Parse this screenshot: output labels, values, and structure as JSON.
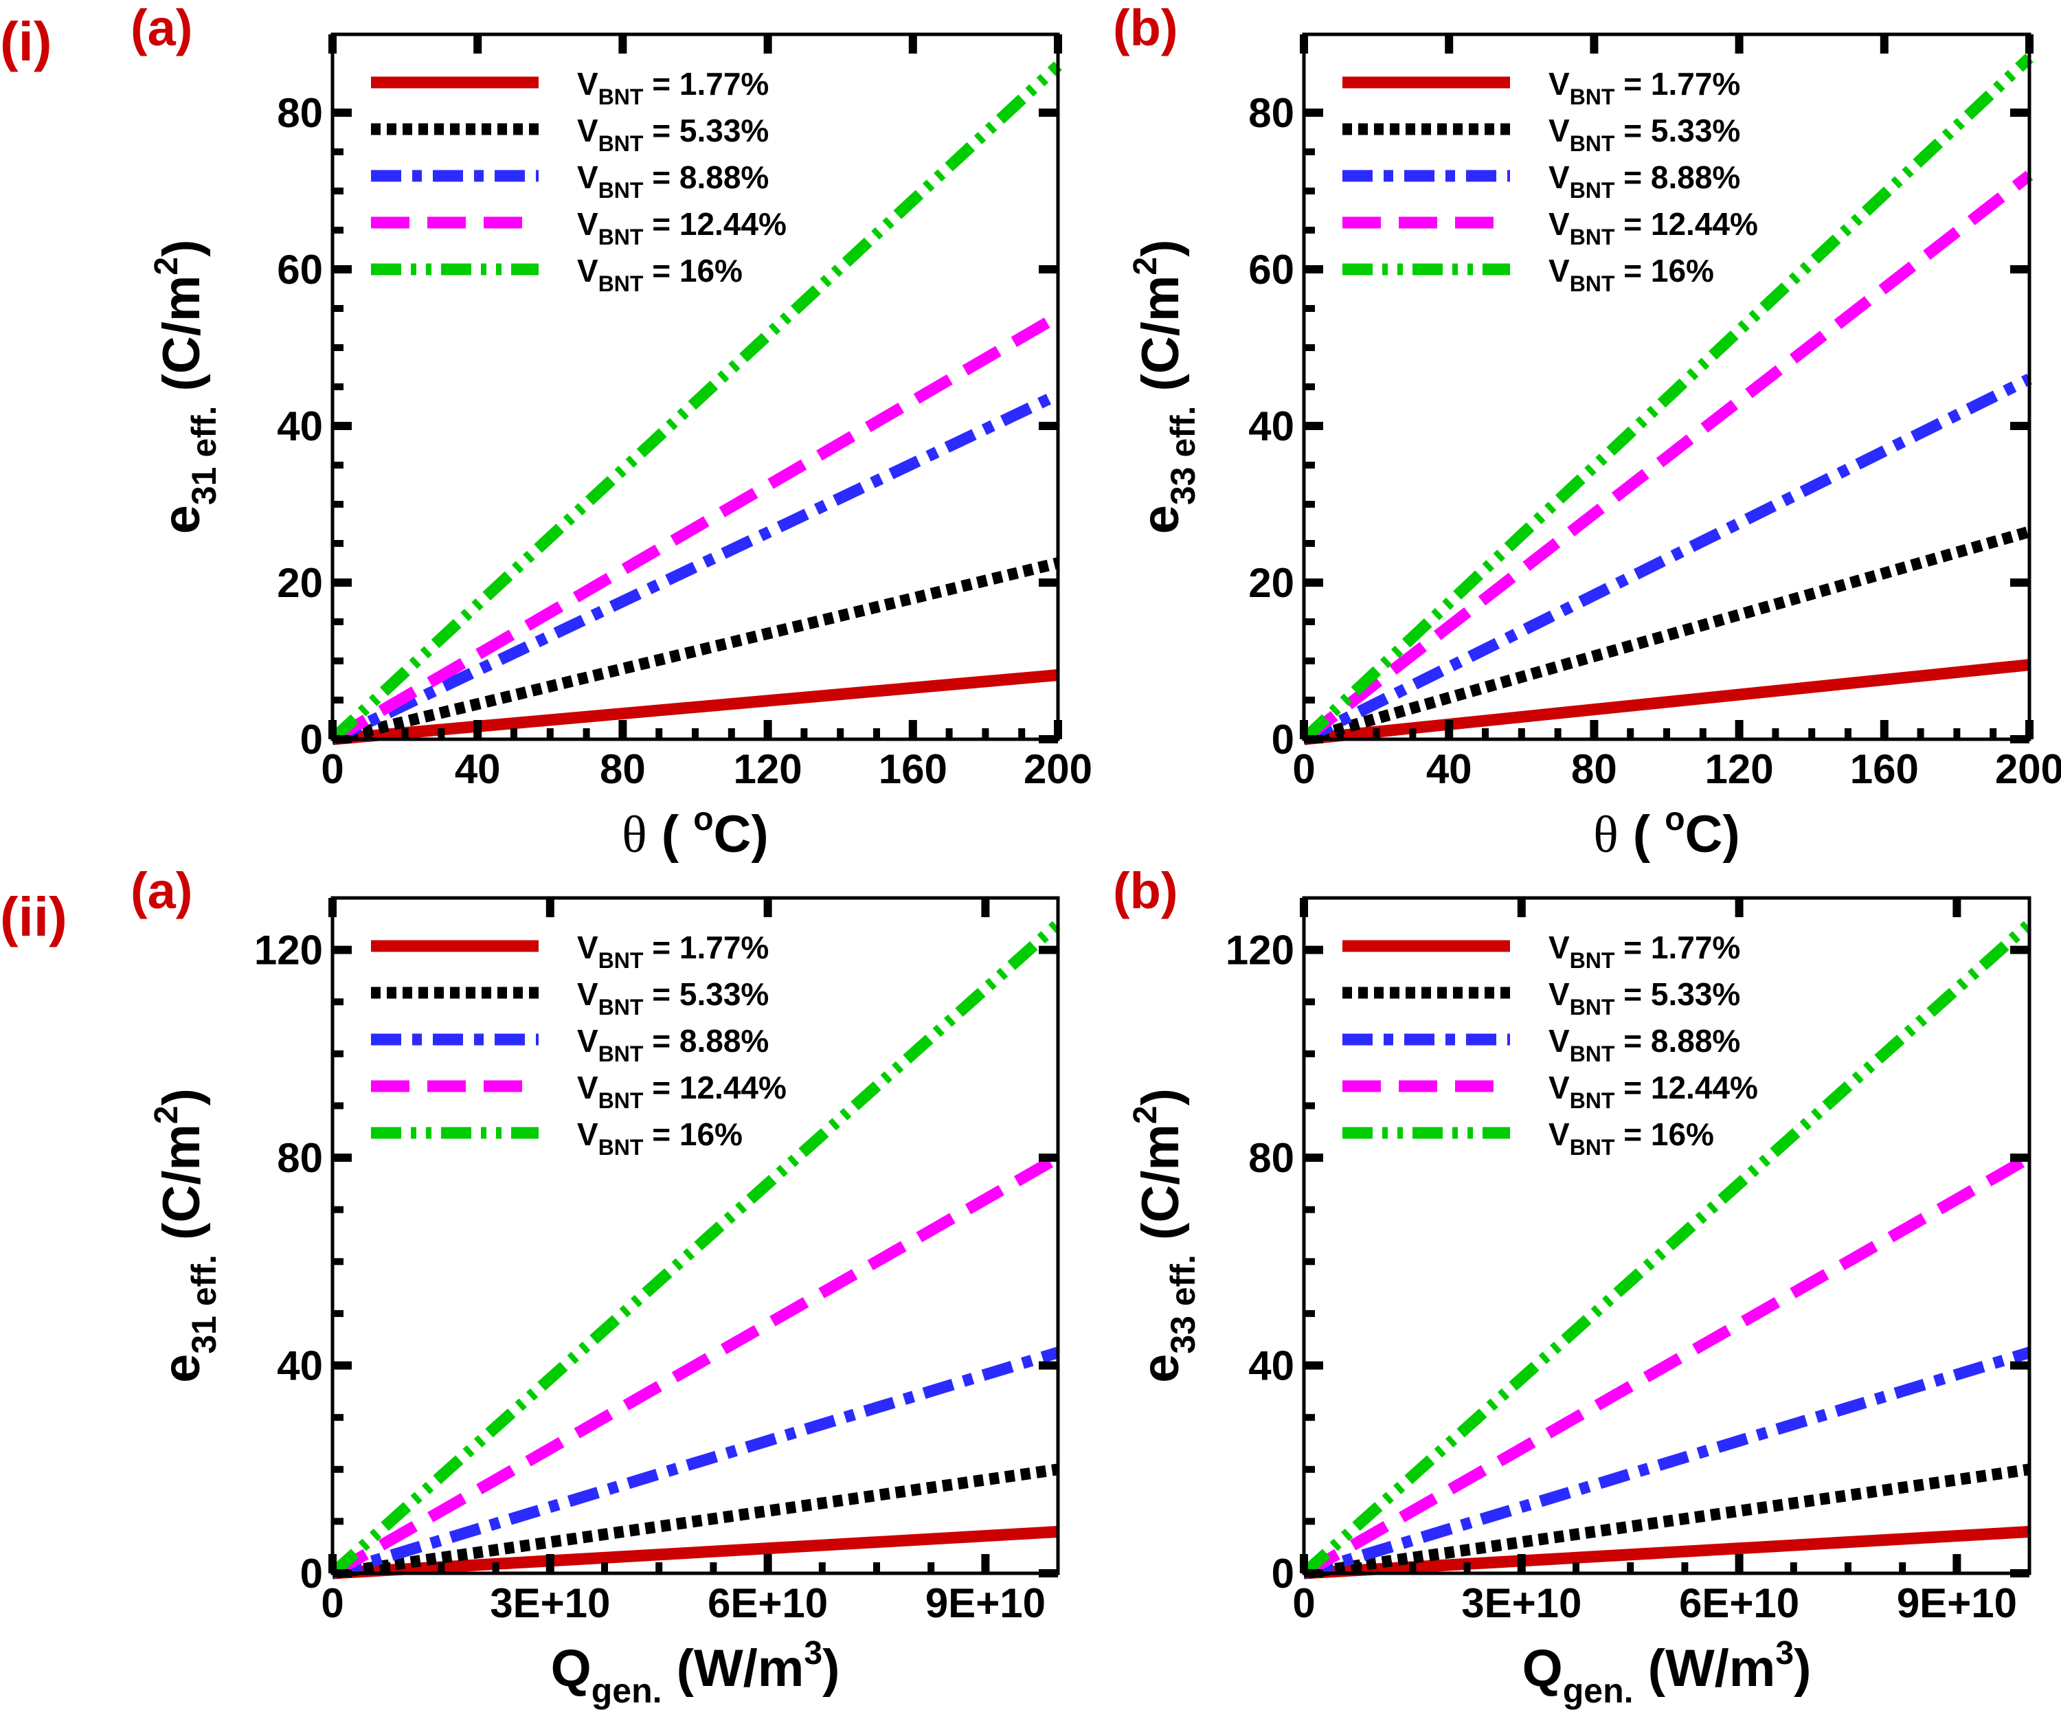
{
  "figure": {
    "row_labels": [
      "(i)",
      "(ii)"
    ]
  },
  "legend_entries": [
    {
      "prefix": "V",
      "subscript": "BNT",
      "value_text": " = 1.77%",
      "color": "#cc0000",
      "style": "solid"
    },
    {
      "prefix": "V",
      "subscript": "BNT",
      "value_text": " = 5.33%",
      "color": "#000000",
      "style": "dotted"
    },
    {
      "prefix": "V",
      "subscript": "BNT",
      "value_text": " = 8.88%",
      "color": "#2b2bff",
      "style": "dashdot"
    },
    {
      "prefix": "V",
      "subscript": "BNT",
      "value_text": " = 12.44%",
      "color": "#ff00ff",
      "style": "dashed"
    },
    {
      "prefix": "V",
      "subscript": "BNT",
      "value_text": " = 16%",
      "color": "#00cc00",
      "style": "dashdotdot"
    }
  ],
  "chart_data": [
    {
      "panel": "(a)",
      "type": "line",
      "xlabel": {
        "main": "θ",
        "rest": " ( ",
        "sup": "o",
        "unit": "C)"
      },
      "ylabel": {
        "main": "e",
        "sub": "31 eff.",
        "rest": " (C/m",
        "sup": "2",
        "end": ")"
      },
      "xlim": [
        0,
        200
      ],
      "ylim": [
        0,
        90
      ],
      "xticks": [
        0,
        40,
        80,
        120,
        160,
        200
      ],
      "xtick_labels": [
        "0",
        "40",
        "80",
        "120",
        "160",
        "200"
      ],
      "yticks": [
        0,
        20,
        40,
        60,
        80
      ],
      "ytick_labels": [
        "0",
        "20",
        "40",
        "60",
        "80"
      ],
      "series": [
        {
          "name": "VBNT = 1.77%",
          "x": [
            0,
            200
          ],
          "y": [
            0,
            8.2
          ]
        },
        {
          "name": "VBNT = 5.33%",
          "x": [
            0,
            200
          ],
          "y": [
            0,
            22.5
          ]
        },
        {
          "name": "VBNT = 8.88%",
          "x": [
            0,
            200
          ],
          "y": [
            0,
            44
          ]
        },
        {
          "name": "VBNT = 12.44%",
          "x": [
            0,
            200
          ],
          "y": [
            0,
            54
          ]
        },
        {
          "name": "VBNT = 16%",
          "x": [
            0,
            200
          ],
          "y": [
            0,
            86
          ]
        }
      ]
    },
    {
      "panel": "(b)",
      "type": "line",
      "xlabel": {
        "main": "θ",
        "rest": " ( ",
        "sup": "o",
        "unit": "C)"
      },
      "ylabel": {
        "main": "e",
        "sub": "33 eff.",
        "rest": " (C/m",
        "sup": "2",
        "end": ")"
      },
      "xlim": [
        0,
        200
      ],
      "ylim": [
        0,
        90
      ],
      "xticks": [
        0,
        40,
        80,
        120,
        160,
        200
      ],
      "xtick_labels": [
        "0",
        "40",
        "80",
        "120",
        "160",
        "200"
      ],
      "yticks": [
        0,
        20,
        40,
        60,
        80
      ],
      "ytick_labels": [
        "0",
        "20",
        "40",
        "60",
        "80"
      ],
      "series": [
        {
          "name": "VBNT = 1.77%",
          "x": [
            0,
            200
          ],
          "y": [
            0,
            9.5
          ]
        },
        {
          "name": "VBNT = 5.33%",
          "x": [
            0,
            200
          ],
          "y": [
            0,
            26.5
          ]
        },
        {
          "name": "VBNT = 8.88%",
          "x": [
            0,
            200
          ],
          "y": [
            0,
            46
          ]
        },
        {
          "name": "VBNT = 12.44%",
          "x": [
            0,
            200
          ],
          "y": [
            0,
            72
          ]
        },
        {
          "name": "VBNT = 16%",
          "x": [
            0,
            200
          ],
          "y": [
            0,
            87
          ]
        }
      ]
    },
    {
      "panel": "(a)",
      "type": "line",
      "xlabel": {
        "main": "Q",
        "sub": "gen.",
        "rest": " (W/m",
        "sup": "3",
        "end": ")"
      },
      "ylabel": {
        "main": "e",
        "sub": "31 eff.",
        "rest": " (C/m",
        "sup": "2",
        "end": ")"
      },
      "xlim": [
        0,
        100000000000
      ],
      "ylim": [
        0,
        130
      ],
      "xticks": [
        0,
        30000000000,
        60000000000,
        90000000000
      ],
      "xtick_labels": [
        "0",
        "3E+10",
        "6E+10",
        "9E+10"
      ],
      "yticks": [
        0,
        40,
        80,
        120
      ],
      "ytick_labels": [
        "0",
        "40",
        "80",
        "120"
      ],
      "series": [
        {
          "name": "VBNT = 1.77%",
          "x": [
            0,
            100000000000
          ],
          "y": [
            0,
            8
          ]
        },
        {
          "name": "VBNT = 5.33%",
          "x": [
            0,
            100000000000
          ],
          "y": [
            0,
            20
          ]
        },
        {
          "name": "VBNT = 8.88%",
          "x": [
            0,
            100000000000
          ],
          "y": [
            0,
            42.5
          ]
        },
        {
          "name": "VBNT = 12.44%",
          "x": [
            0,
            100000000000
          ],
          "y": [
            0,
            80
          ]
        },
        {
          "name": "VBNT = 16%",
          "x": [
            0,
            100000000000
          ],
          "y": [
            0,
            125
          ]
        }
      ]
    },
    {
      "panel": "(b)",
      "type": "line",
      "xlabel": {
        "main": "Q",
        "sub": "gen.",
        "rest": " (W/m",
        "sup": "3",
        "end": ")"
      },
      "ylabel": {
        "main": "e",
        "sub": "33 eff.",
        "rest": " (C/m",
        "sup": "2",
        "end": ")"
      },
      "xlim": [
        0,
        100000000000
      ],
      "ylim": [
        0,
        130
      ],
      "xticks": [
        0,
        30000000000,
        60000000000,
        90000000000
      ],
      "xtick_labels": [
        "0",
        "3E+10",
        "6E+10",
        "9E+10"
      ],
      "yticks": [
        0,
        40,
        80,
        120
      ],
      "ytick_labels": [
        "0",
        "40",
        "80",
        "120"
      ],
      "series": [
        {
          "name": "VBNT = 1.77%",
          "x": [
            0,
            100000000000
          ],
          "y": [
            0,
            8
          ]
        },
        {
          "name": "VBNT = 5.33%",
          "x": [
            0,
            100000000000
          ],
          "y": [
            0,
            20
          ]
        },
        {
          "name": "VBNT = 8.88%",
          "x": [
            0,
            100000000000
          ],
          "y": [
            0,
            42.5
          ]
        },
        {
          "name": "VBNT = 12.44%",
          "x": [
            0,
            100000000000
          ],
          "y": [
            0,
            80
          ]
        },
        {
          "name": "VBNT = 16%",
          "x": [
            0,
            100000000000
          ],
          "y": [
            0,
            125
          ]
        }
      ]
    }
  ]
}
